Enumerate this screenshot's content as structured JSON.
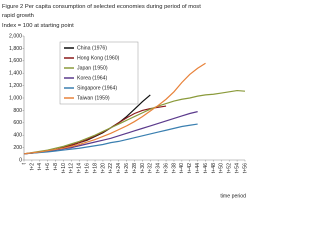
{
  "chart_data": {
    "type": "line",
    "title": "Figure 2 Per capita consumption of selected economies during period of most rapid growth",
    "subtitle": "Index = 100 at starting point",
    "x_label": "time period",
    "categories": [
      "t",
      "t+2",
      "t+4",
      "t+6",
      "t+8",
      "t+10",
      "t+12",
      "t+14",
      "t+16",
      "t+18",
      "t+20",
      "t+22",
      "t+24",
      "t+26",
      "t+28",
      "t+30",
      "t+32",
      "t+34",
      "t+36",
      "t+38",
      "t+40",
      "t+42",
      "t+44",
      "t+46",
      "t+48",
      "t+50",
      "t+52",
      "t+54",
      "t+56"
    ],
    "ylim": [
      0,
      2000
    ],
    "yticks": [
      0,
      200,
      400,
      600,
      800,
      {
        "value": 1000,
        "label": "1,000"
      },
      {
        "value": 1200,
        "label": "1,200"
      },
      {
        "value": 1400,
        "label": "1,400"
      },
      {
        "value": 1600,
        "label": "1,600"
      },
      {
        "value": 1800,
        "label": "1,800"
      },
      {
        "value": 2000,
        "label": "2,000"
      }
    ],
    "grid": false,
    "legend": "upper left",
    "series": [
      {
        "name": "China (1976)",
        "color": "#111111",
        "values": [
          100,
          110,
          130,
          150,
          170,
          200,
          240,
          280,
          320,
          380,
          440,
          520,
          600,
          700,
          820,
          940,
          1050,
          null,
          null,
          null,
          null,
          null,
          null,
          null,
          null,
          null,
          null,
          null,
          null
        ]
      },
      {
        "name": "Hong Kong (1960)",
        "color": "#8b1a1a",
        "values": [
          100,
          115,
          130,
          150,
          170,
          200,
          240,
          280,
          330,
          390,
          450,
          520,
          600,
          680,
          750,
          800,
          830,
          850,
          870,
          null,
          null,
          null,
          null,
          null,
          null,
          null,
          null,
          null,
          null
        ]
      },
      {
        "name": "Japan (1950)",
        "color": "#8a9a3a",
        "values": [
          100,
          120,
          140,
          160,
          190,
          220,
          260,
          300,
          350,
          400,
          460,
          520,
          580,
          640,
          700,
          760,
          820,
          870,
          910,
          950,
          980,
          1000,
          1030,
          1050,
          1060,
          1080,
          1100,
          1120,
          1110
        ]
      },
      {
        "name": "Korea (1964)",
        "color": "#5b3a8c",
        "values": [
          100,
          110,
          125,
          140,
          160,
          180,
          200,
          230,
          260,
          290,
          320,
          350,
          390,
          430,
          470,
          510,
          550,
          590,
          630,
          670,
          710,
          750,
          780,
          null,
          null,
          null,
          null,
          null,
          null
        ]
      },
      {
        "name": "Singapore (1964)",
        "color": "#3a7fb0",
        "values": [
          100,
          110,
          120,
          130,
          145,
          160,
          175,
          190,
          210,
          230,
          250,
          280,
          300,
          330,
          360,
          390,
          420,
          450,
          480,
          510,
          540,
          560,
          580,
          null,
          null,
          null,
          null,
          null,
          null
        ]
      },
      {
        "name": "Taiwan (1959)",
        "color": "#e8823a",
        "values": [
          100,
          115,
          130,
          150,
          170,
          190,
          220,
          250,
          290,
          330,
          380,
          430,
          490,
          550,
          620,
          700,
          790,
          880,
          980,
          1100,
          1250,
          1380,
          1480,
          1560,
          null,
          null,
          null,
          null,
          null
        ]
      }
    ]
  }
}
